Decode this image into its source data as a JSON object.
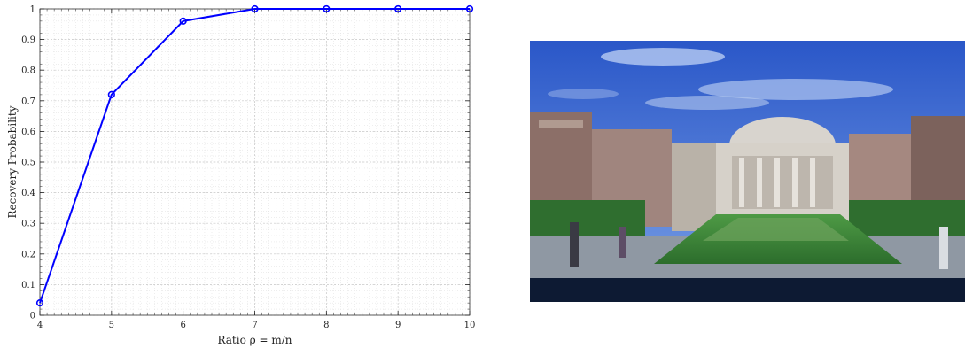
{
  "chart_data": {
    "type": "line",
    "xlabel": "Ratio ρ = m/n",
    "ylabel": "Recovery Probability",
    "xlim": [
      4,
      10
    ],
    "ylim": [
      0,
      1
    ],
    "x_ticks": [
      4,
      5,
      6,
      7,
      8,
      9,
      10
    ],
    "y_ticks": [
      0,
      0.1,
      0.2,
      0.3,
      0.4,
      0.5,
      0.6,
      0.7,
      0.8,
      0.9,
      1
    ],
    "y_tick_labels": [
      "0",
      "0.1",
      "0.2",
      "0.3",
      "0.4",
      "0.5",
      "0.6",
      "0.7",
      "0.8",
      "0.9",
      "1"
    ],
    "grid": true,
    "minor_grid": true,
    "series": [
      {
        "color": "#0000ff",
        "marker": "circle",
        "x": [
          4,
          5,
          6,
          7,
          8,
          9,
          10
        ],
        "y": [
          0.04,
          0.72,
          0.96,
          1.0,
          1.0,
          1.0,
          1.0
        ]
      }
    ]
  },
  "photo": {
    "icon": "campus-library-photo",
    "colors": {
      "sky_top": "#2f5fd0",
      "sky_bottom": "#6f98e6",
      "building": "#c9c4bd",
      "lawn": "#3d8a3a",
      "pavement": "#9aa3ad",
      "shadow": "#0d1a33"
    }
  }
}
